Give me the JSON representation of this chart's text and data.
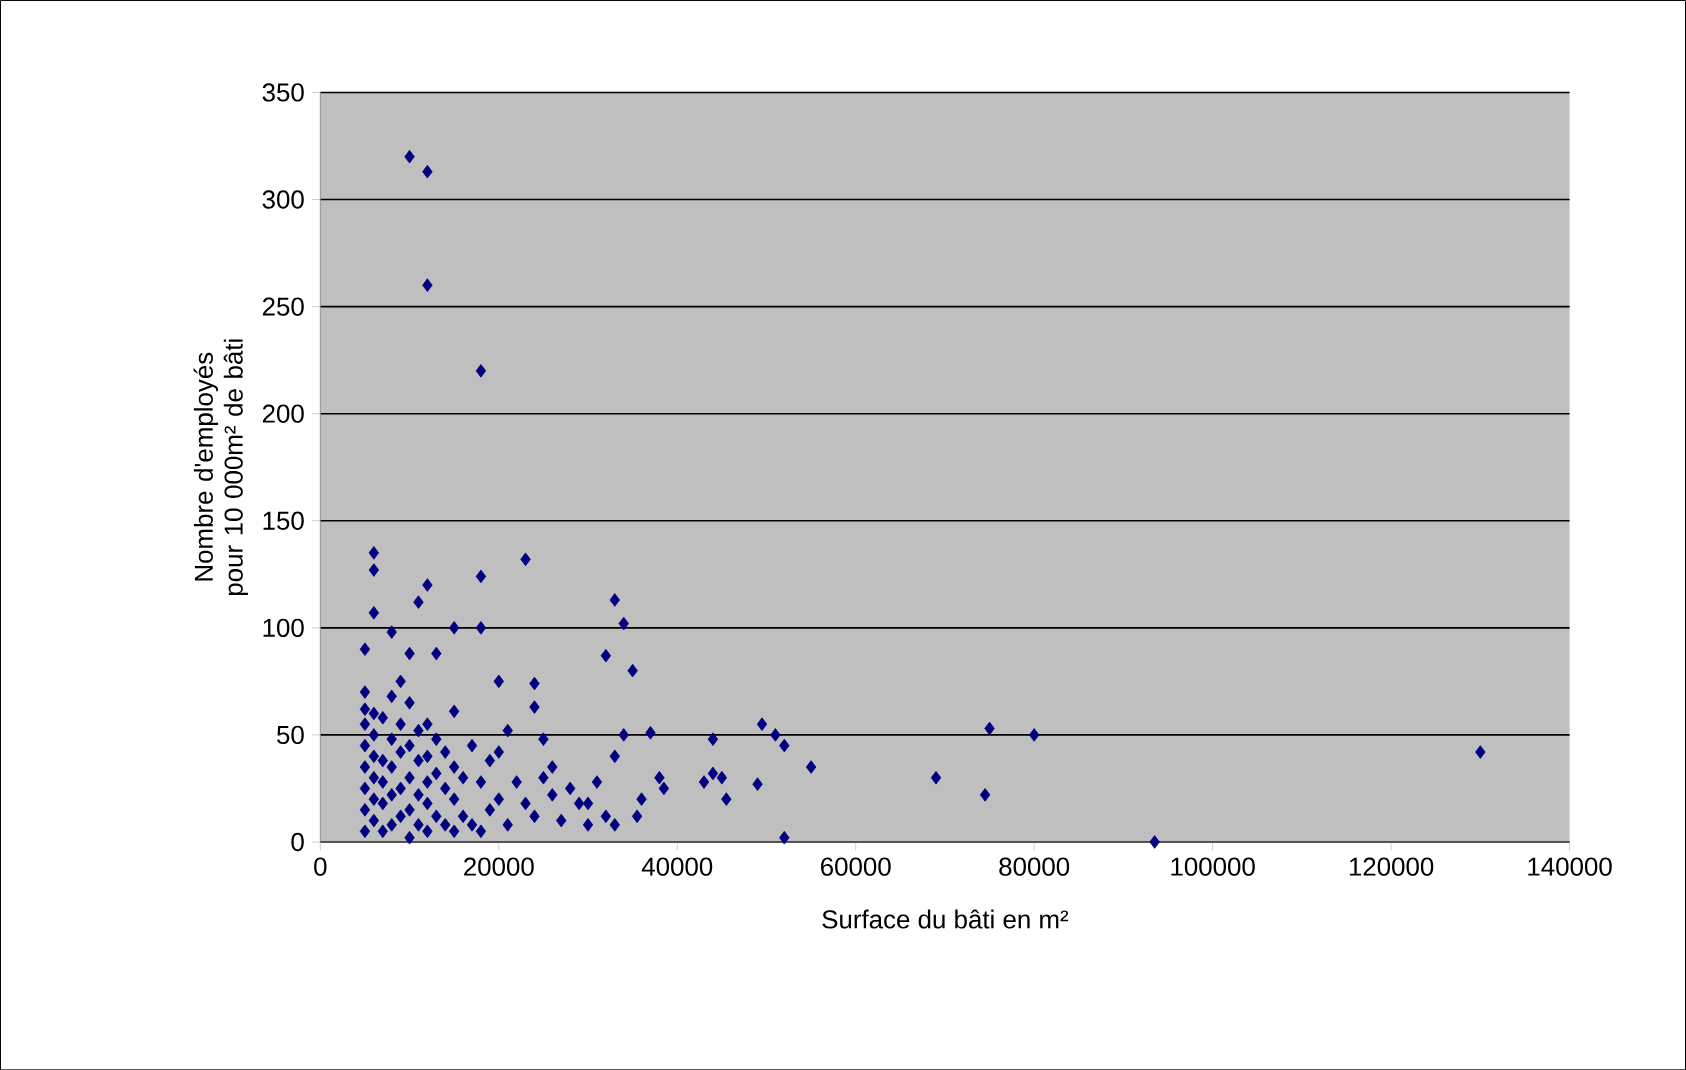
{
  "chart_data": {
    "type": "scatter",
    "xlabel": "Surface du bâti en m²",
    "ylabel": "Nombre d'employés pour 10 000m² de bâti",
    "xlim": [
      0,
      140000
    ],
    "ylim": [
      0,
      350
    ],
    "xticks": [
      0,
      20000,
      40000,
      60000,
      80000,
      100000,
      120000,
      140000
    ],
    "yticks": [
      0,
      50,
      100,
      150,
      200,
      250,
      300,
      350
    ],
    "grid": "y",
    "marker": "diamond",
    "series": [
      {
        "color": "#000080",
        "x": [
          10000,
          12000,
          12000,
          18000,
          23000,
          6000,
          6000,
          18000,
          12000,
          11000,
          33000,
          34000,
          6000,
          15000,
          18000,
          8000,
          35000,
          32000,
          5000,
          10000,
          13000,
          20000,
          24000,
          24000,
          15000,
          21000,
          49500,
          51000,
          52000,
          55000,
          44000,
          45000,
          49000,
          44000,
          52000,
          69000,
          75000,
          74500,
          80000,
          93500,
          130000,
          38000,
          37000,
          36000,
          35500,
          38500,
          43000,
          45500,
          5000,
          5000,
          5000,
          5000,
          5000,
          5000,
          5000,
          5000,
          6000,
          6000,
          6000,
          6000,
          6000,
          6000,
          7000,
          7000,
          7000,
          7000,
          7000,
          8000,
          8000,
          8000,
          8000,
          8000,
          9000,
          9000,
          9000,
          9000,
          9000,
          10000,
          10000,
          10000,
          10000,
          10000,
          11000,
          11000,
          11000,
          11000,
          12000,
          12000,
          12000,
          12000,
          12000,
          13000,
          13000,
          13000,
          14000,
          14000,
          14000,
          15000,
          15000,
          15000,
          16000,
          16000,
          17000,
          17000,
          18000,
          18000,
          19000,
          19000,
          20000,
          20000,
          21000,
          22000,
          23000,
          24000,
          25000,
          25000,
          26000,
          27000,
          28000,
          29000,
          30000,
          31000,
          32000,
          33000,
          33000,
          34000,
          26000,
          30000
        ],
        "values": [
          320,
          313,
          260,
          220,
          132,
          135,
          127,
          124,
          120,
          112,
          113,
          102,
          107,
          100,
          100,
          98,
          80,
          87,
          90,
          88,
          88,
          75,
          74,
          63,
          61,
          52,
          55,
          50,
          45,
          35,
          32,
          30,
          27,
          48,
          2,
          30,
          53,
          22,
          50,
          0,
          42,
          30,
          51,
          20,
          12,
          25,
          28,
          20,
          5,
          15,
          25,
          35,
          45,
          55,
          62,
          70,
          10,
          20,
          30,
          40,
          50,
          60,
          5,
          18,
          28,
          38,
          58,
          8,
          22,
          35,
          48,
          68,
          12,
          25,
          42,
          55,
          75,
          2,
          15,
          30,
          45,
          65,
          8,
          22,
          38,
          52,
          5,
          18,
          28,
          40,
          55,
          12,
          32,
          48,
          8,
          25,
          42,
          5,
          20,
          35,
          12,
          30,
          8,
          45,
          5,
          28,
          15,
          38,
          20,
          42,
          8,
          28,
          18,
          12,
          30,
          48,
          22,
          10,
          25,
          18,
          8,
          28,
          12,
          40,
          8,
          50,
          35,
          18
        ]
      }
    ]
  }
}
